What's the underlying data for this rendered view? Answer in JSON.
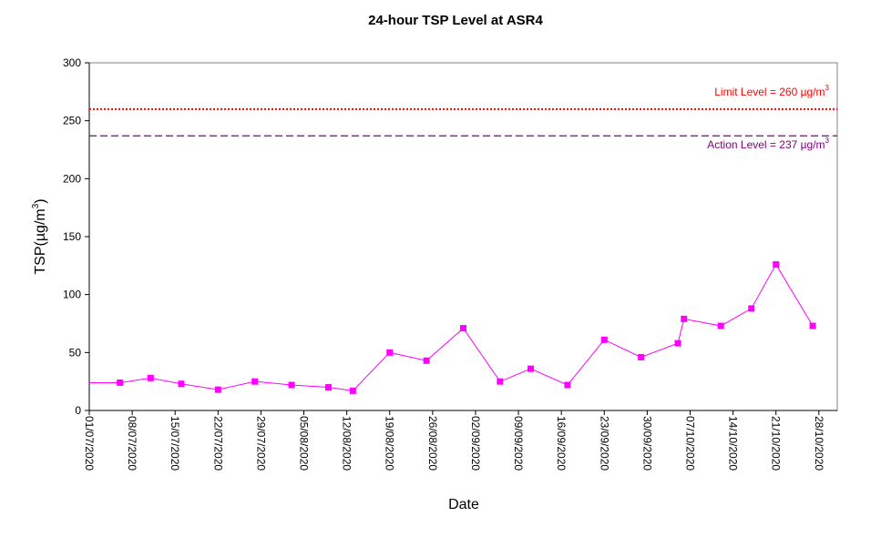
{
  "chart_data": {
    "type": "line",
    "title": "24-hour TSP Level at ASR4",
    "xlabel": "Date",
    "ylabel_main": "TSP(µg/m",
    "ylabel_sup": "3",
    "ylabel_end": ")",
    "ylim": [
      0,
      300
    ],
    "y_ticks": [
      0,
      50,
      100,
      150,
      200,
      250,
      300
    ],
    "x_start": "2020-07-01",
    "x_end": "2020-10-31",
    "x_tick_labels": [
      "01/07/2020",
      "08/07/2020",
      "15/07/2020",
      "22/07/2020",
      "29/07/2020",
      "05/08/2020",
      "12/08/2020",
      "19/08/2020",
      "26/08/2020",
      "02/09/2020",
      "09/09/2020",
      "16/09/2020",
      "23/09/2020",
      "30/09/2020",
      "07/10/2020",
      "14/10/2020",
      "21/10/2020",
      "28/10/2020"
    ],
    "grid": false,
    "series": [
      {
        "color": "#ff00ff",
        "marker": "square",
        "x": [
          "2020-07-06",
          "2020-07-11",
          "2020-07-16",
          "2020-07-22",
          "2020-07-28",
          "2020-08-03",
          "2020-08-09",
          "2020-08-13",
          "2020-08-19",
          "2020-08-25",
          "2020-08-31",
          "2020-09-06",
          "2020-09-11",
          "2020-09-17",
          "2020-09-23",
          "2020-09-29",
          "2020-10-05",
          "2020-10-06",
          "2020-10-12",
          "2020-10-17",
          "2020-10-21",
          "2020-10-27"
        ],
        "values": [
          24,
          28,
          23,
          18,
          25,
          22,
          20,
          17,
          50,
          43,
          71,
          25,
          36,
          22,
          61,
          46,
          58,
          79,
          73,
          88,
          126,
          73
        ]
      }
    ],
    "series_start": {
      "x": "2020-07-01",
      "value": 24
    },
    "reference_lines": [
      {
        "value": 260,
        "color": "#ff0000",
        "style": "dotted",
        "label_main": "Limit Level  = 260 µg/m",
        "label_sup": "3"
      },
      {
        "value": 237,
        "color": "#800080",
        "style": "dashed",
        "label_main": "Action Level  = 237 µg/m",
        "label_sup": "3"
      }
    ],
    "colors": {
      "axis": "#000000",
      "limit": "#ff0000",
      "action": "#800080",
      "series": "#ff00ff"
    }
  }
}
